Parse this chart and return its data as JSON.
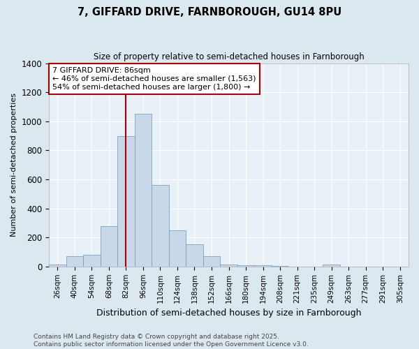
{
  "title": "7, GIFFARD DRIVE, FARNBOROUGH, GU14 8PU",
  "subtitle": "Size of property relative to semi-detached houses in Farnborough",
  "xlabel": "Distribution of semi-detached houses by size in Farnborough",
  "ylabel": "Number of semi-detached properties",
  "footer_line1": "Contains HM Land Registry data © Crown copyright and database right 2025.",
  "footer_line2": "Contains public sector information licensed under the Open Government Licence v3.0.",
  "bins": [
    "26sqm",
    "40sqm",
    "54sqm",
    "68sqm",
    "82sqm",
    "96sqm",
    "110sqm",
    "124sqm",
    "138sqm",
    "152sqm",
    "166sqm",
    "180sqm",
    "194sqm",
    "208sqm",
    "221sqm",
    "235sqm",
    "249sqm",
    "263sqm",
    "277sqm",
    "291sqm",
    "305sqm"
  ],
  "values": [
    15,
    70,
    80,
    280,
    900,
    1050,
    560,
    250,
    155,
    70,
    15,
    10,
    10,
    5,
    0,
    0,
    15,
    0,
    0,
    0,
    0
  ],
  "bar_color": "#c8d8e8",
  "bar_edge_color": "#6699bb",
  "vline_x_index": 4,
  "vline_color": "#aa0000",
  "annotation_title": "7 GIFFARD DRIVE: 86sqm",
  "annotation_line1": "← 46% of semi-detached houses are smaller (1,563)",
  "annotation_line2": "54% of semi-detached houses are larger (1,800) →",
  "annotation_box_color": "#aa0000",
  "ylim": [
    0,
    1400
  ],
  "yticks": [
    0,
    200,
    400,
    600,
    800,
    1000,
    1200,
    1400
  ],
  "background_color": "#dce8f0",
  "plot_background": "#e8f0f8",
  "grid_color": "#ffffff"
}
